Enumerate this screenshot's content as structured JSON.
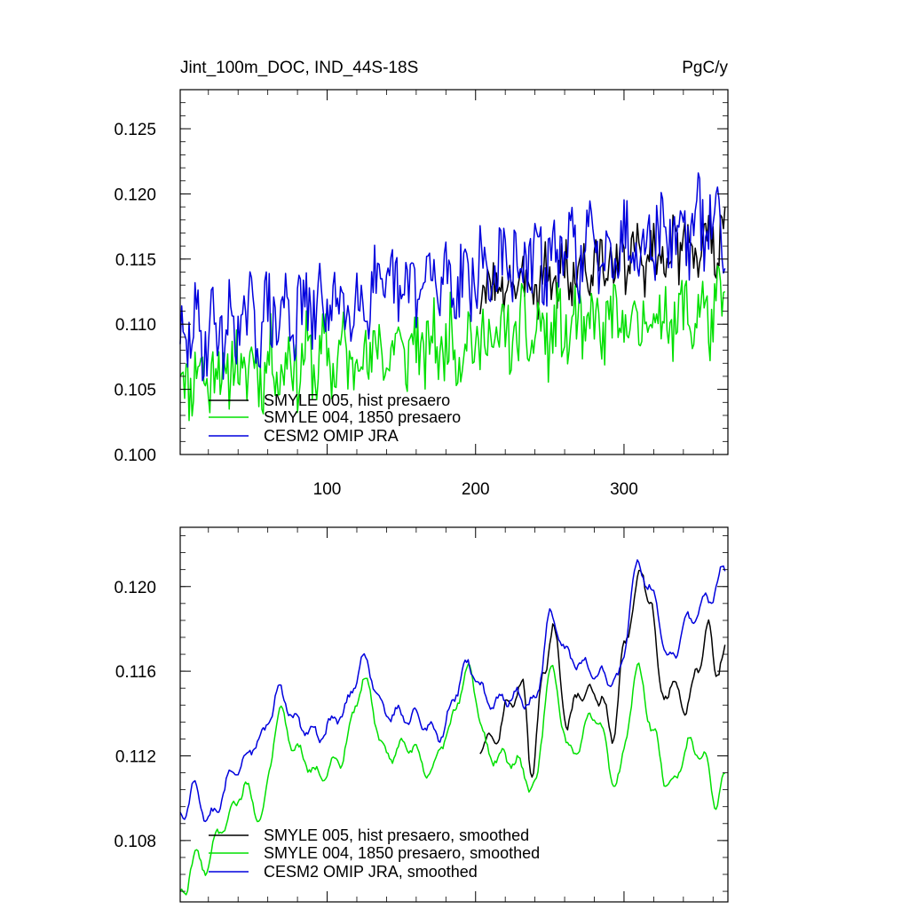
{
  "chart_data": [
    {
      "type": "line",
      "title": "Jint_100m_DOC, IND_44S-18S",
      "units": "PgC/y",
      "xlabel": "",
      "ylabel": "",
      "xlim": [
        1,
        370
      ],
      "ylim": [
        0.1,
        0.128
      ],
      "x_ticks": [
        100,
        200,
        300
      ],
      "y_ticks": [
        "0.100",
        "0.105",
        "0.110",
        "0.115",
        "0.120",
        "0.125"
      ],
      "legend_position": "bottom-left",
      "series": [
        {
          "name": "SMYLE 005, hist presaero",
          "color": "#000000",
          "x_start": 203,
          "x_end": 368,
          "start": 0.1125,
          "end": 0.1165,
          "amp": 0.0032,
          "phase": 5,
          "seed": 3
        },
        {
          "name": "SMYLE 004, 1850 presaero",
          "color": "#00e000",
          "x_start": 1,
          "x_end": 368,
          "start": 0.106,
          "end": 0.111,
          "amp": 0.004,
          "phase": 7,
          "seed": 11
        },
        {
          "name": "CESM2 OMIP JRA",
          "color": "#0000dd",
          "x_start": 1,
          "x_end": 368,
          "start": 0.109,
          "end": 0.118,
          "amp": 0.0042,
          "phase": 2,
          "seed": 29
        }
      ],
      "legend": [
        "SMYLE 005, hist presaero",
        "SMYLE 004, 1850 presaero",
        "CESM2 OMIP JRA"
      ]
    },
    {
      "type": "line",
      "title": "",
      "xlabel": "",
      "ylabel": "",
      "xlim": [
        1,
        370
      ],
      "ylim": [
        0.1051,
        0.1228
      ],
      "y_ticks": [
        "0.108",
        "0.112",
        "0.116",
        "0.120"
      ],
      "legend_position": "bottom-left",
      "series": [
        {
          "name": "SMYLE 005, hist presaero, smoothed",
          "color": "#000000",
          "x_start": 203,
          "x_end": 368,
          "keypoints": [
            [
              203,
              0.1125
            ],
            [
              215,
              0.113
            ],
            [
              222,
              0.1145
            ],
            [
              232,
              0.1152
            ],
            [
              238,
              0.1112
            ],
            [
              246,
              0.116
            ],
            [
              252,
              0.118
            ],
            [
              262,
              0.1135
            ],
            [
              270,
              0.115
            ],
            [
              285,
              0.1148
            ],
            [
              292,
              0.1128
            ],
            [
              300,
              0.117
            ],
            [
              310,
              0.1205
            ],
            [
              318,
              0.1195
            ],
            [
              325,
              0.115
            ],
            [
              335,
              0.1152
            ],
            [
              342,
              0.1142
            ],
            [
              350,
              0.1162
            ],
            [
              357,
              0.118
            ],
            [
              362,
              0.116
            ],
            [
              368,
              0.1168
            ]
          ]
        },
        {
          "name": "SMYLE 004, 1850 presaero, smoothed",
          "color": "#00e000",
          "x_start": 1,
          "x_end": 368,
          "keypoints": [
            [
              3,
              0.1053
            ],
            [
              10,
              0.1072
            ],
            [
              18,
              0.1068
            ],
            [
              30,
              0.1088
            ],
            [
              45,
              0.1105
            ],
            [
              55,
              0.109
            ],
            [
              68,
              0.114
            ],
            [
              80,
              0.1122
            ],
            [
              95,
              0.111
            ],
            [
              108,
              0.1118
            ],
            [
              125,
              0.1155
            ],
            [
              140,
              0.112
            ],
            [
              155,
              0.1125
            ],
            [
              170,
              0.1112
            ],
            [
              180,
              0.113
            ],
            [
              195,
              0.116
            ],
            [
              210,
              0.112
            ],
            [
              225,
              0.1118
            ],
            [
              240,
              0.1105
            ],
            [
              250,
              0.116
            ],
            [
              265,
              0.112
            ],
            [
              280,
              0.114
            ],
            [
              295,
              0.1108
            ],
            [
              310,
              0.116
            ],
            [
              320,
              0.113
            ],
            [
              330,
              0.1105
            ],
            [
              345,
              0.1125
            ],
            [
              355,
              0.1118
            ],
            [
              362,
              0.1098
            ],
            [
              368,
              0.111
            ]
          ]
        },
        {
          "name": "CESM2 OMIP JRA, smoothed",
          "color": "#0000dd",
          "x_start": 1,
          "x_end": 368,
          "keypoints": [
            [
              3,
              0.1092
            ],
            [
              10,
              0.1105
            ],
            [
              20,
              0.109
            ],
            [
              40,
              0.1115
            ],
            [
              55,
              0.1128
            ],
            [
              68,
              0.115
            ],
            [
              80,
              0.1135
            ],
            [
              95,
              0.113
            ],
            [
              110,
              0.114
            ],
            [
              125,
              0.1165
            ],
            [
              140,
              0.114
            ],
            [
              160,
              0.1138
            ],
            [
              175,
              0.113
            ],
            [
              195,
              0.1162
            ],
            [
              210,
              0.1145
            ],
            [
              225,
              0.1148
            ],
            [
              240,
              0.1145
            ],
            [
              250,
              0.1185
            ],
            [
              265,
              0.1165
            ],
            [
              285,
              0.1158
            ],
            [
              295,
              0.1155
            ],
            [
              310,
              0.121
            ],
            [
              320,
              0.1195
            ],
            [
              330,
              0.1165
            ],
            [
              345,
              0.1185
            ],
            [
              358,
              0.1195
            ],
            [
              368,
              0.1208
            ]
          ]
        }
      ],
      "legend": [
        "SMYLE 005, hist presaero, smoothed",
        "SMYLE 004, 1850 presaero, smoothed",
        "CESM2 OMIP JRA, smoothed"
      ]
    }
  ]
}
